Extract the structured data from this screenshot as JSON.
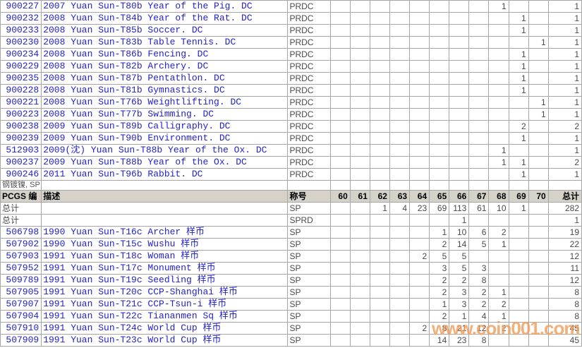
{
  "colors": {
    "link_blue": "#2222cc",
    "text_dark": "#4a4a4a",
    "grid_line": "#a6a6a6",
    "header_bg": "#d6d2ca",
    "watermark_orange": "#f09e5c"
  },
  "section_label": "钢镀镍, SP",
  "watermark": "www.coin001.com",
  "header": {
    "pcgs": "PCGS 编",
    "description": "描述",
    "designation": "称号",
    "grades": [
      "60",
      "61",
      "62",
      "63",
      "64",
      "65",
      "66",
      "67",
      "68",
      "69",
      "70"
    ],
    "total": "总计"
  },
  "top_table_rows": [
    {
      "pcgs": "900227",
      "description": "2007 Yuan Sun-T80b Year of the Pig. DC",
      "designation": "PRDC",
      "grades": {
        "68": 1
      },
      "total": 1
    },
    {
      "pcgs": "900232",
      "description": "2008 Yuan Sun-T84b Year of the Rat. DC",
      "designation": "PRDC",
      "grades": {
        "69": 1
      },
      "total": 1
    },
    {
      "pcgs": "900233",
      "description": "2008 Yuan Sun-T85b Soccer. DC",
      "designation": "PRDC",
      "grades": {
        "69": 1
      },
      "total": 1
    },
    {
      "pcgs": "900230",
      "description": "2008 Yuan Sun-T83b Table Tennis. DC",
      "designation": "PRDC",
      "grades": {
        "70": 1
      },
      "total": 1
    },
    {
      "pcgs": "900234",
      "description": "2008 Yuan Sun-T86b Fencing. DC",
      "designation": "PRDC",
      "grades": {
        "69": 1
      },
      "total": 1
    },
    {
      "pcgs": "900229",
      "description": "2008 Yuan Sun-T82b Archery. DC",
      "designation": "PRDC",
      "grades": {
        "69": 1
      },
      "total": 1
    },
    {
      "pcgs": "900235",
      "description": "2008 Yuan Sun-T87b Pentathlon. DC",
      "designation": "PRDC",
      "grades": {
        "69": 1
      },
      "total": 1
    },
    {
      "pcgs": "900228",
      "description": "2008 Yuan Sun-T81b Gymnastics. DC",
      "designation": "PRDC",
      "grades": {
        "69": 1
      },
      "total": 1
    },
    {
      "pcgs": "900221",
      "description": "2008 Yuan Sun-T76b Weightlifting. DC",
      "designation": "PRDC",
      "grades": {
        "70": 1
      },
      "total": 1
    },
    {
      "pcgs": "900223",
      "description": "2008 Yuan Sun-T77b Swimming. DC",
      "designation": "PRDC",
      "grades": {
        "70": 1
      },
      "total": 1
    },
    {
      "pcgs": "900238",
      "description": "2009 Yuan Sun-T89b Calligraphy. DC",
      "designation": "PRDC",
      "grades": {
        "69": 2
      },
      "total": 2
    },
    {
      "pcgs": "900239",
      "description": "2009 Yuan Sun-T90b Environment. DC",
      "designation": "PRDC",
      "grades": {
        "69": 1
      },
      "total": 1
    },
    {
      "pcgs": "512903",
      "description": "2009(沈) Yuan Sun-T88b Year of the Ox. DC",
      "designation": "PRDC",
      "grades": {
        "68": 1
      },
      "total": 1
    },
    {
      "pcgs": "900237",
      "description": "2009 Yuan Sun-T88b Year of the Ox. DC",
      "designation": "PRDC",
      "grades": {
        "68": 1,
        "69": 1
      },
      "total": 2
    },
    {
      "pcgs": "900246",
      "description": "2011 Yuan Sun-T96b Rabbit. DC",
      "designation": "PRDC",
      "grades": {
        "69": 1
      },
      "total": 1
    }
  ],
  "totals_rows": [
    {
      "label": "总计",
      "designation": "SP",
      "grades": {
        "62": 1,
        "63": 4,
        "64": 23,
        "65": 69,
        "66": 113,
        "67": 61,
        "68": 10,
        "69": 1
      },
      "total": 282
    },
    {
      "label": "总计",
      "designation": "SPRD",
      "grades": {
        "66": 1
      },
      "total": 1
    }
  ],
  "bottom_table_rows": [
    {
      "pcgs": "506798",
      "description": "1990 Yuan Sun-T16c Archer 样币",
      "designation": "SP",
      "grades": {
        "65": 1,
        "66": 10,
        "67": 6,
        "68": 2
      },
      "total": 19
    },
    {
      "pcgs": "507902",
      "description": "1990 Yuan Sun-T15c Wushu 样币",
      "designation": "SP",
      "grades": {
        "65": 2,
        "66": 14,
        "67": 5,
        "68": 1
      },
      "total": 22
    },
    {
      "pcgs": "507903",
      "description": "1991 Yuan Sun-T18c Woman 样币",
      "designation": "SP",
      "grades": {
        "64": 2,
        "65": 5,
        "66": 5
      },
      "total": 12
    },
    {
      "pcgs": "507952",
      "description": "1991 Yuan Sun-T17c Monument 样币",
      "designation": "SP",
      "grades": {
        "65": 3,
        "66": 5,
        "67": 3
      },
      "total": 11
    },
    {
      "pcgs": "509789",
      "description": "1991 Yuan Sun-T19c Seedling 样币",
      "designation": "SP",
      "grades": {
        "65": 2,
        "66": 2,
        "67": 8
      },
      "total": 12
    },
    {
      "pcgs": "507905",
      "description": "1991 Yuan Sun-T20c CCP-Shanghai 样币",
      "designation": "SP",
      "grades": {
        "65": 2,
        "66": 3,
        "67": 2,
        "68": 1
      },
      "total": 8
    },
    {
      "pcgs": "507907",
      "description": "1991 Yuan Sun-T21c CCP-Tsun-i 样币",
      "designation": "SP",
      "grades": {
        "65": 1,
        "66": 3,
        "67": 2,
        "68": 2
      },
      "total": 8
    },
    {
      "pcgs": "507904",
      "description": "1991 Yuan Sun-T22c Tiananmen Sq 样币",
      "designation": "SP",
      "grades": {
        "65": 2,
        "66": 1,
        "67": 4,
        "68": 1
      },
      "total": 8
    },
    {
      "pcgs": "507910",
      "description": "1991 Yuan Sun-T24c World Cup 样币",
      "designation": "SP",
      "grades": {
        "64": 2,
        "65": 8,
        "66": 21,
        "67": 12,
        "68": 2
      },
      "total": 45
    },
    {
      "pcgs": "507909",
      "description": "1991 Yuan Sun-T23c World Cup 样币",
      "designation": "SP",
      "grades": {
        "65": 14,
        "66": 23,
        "67": 8
      },
      "total": 45
    }
  ]
}
